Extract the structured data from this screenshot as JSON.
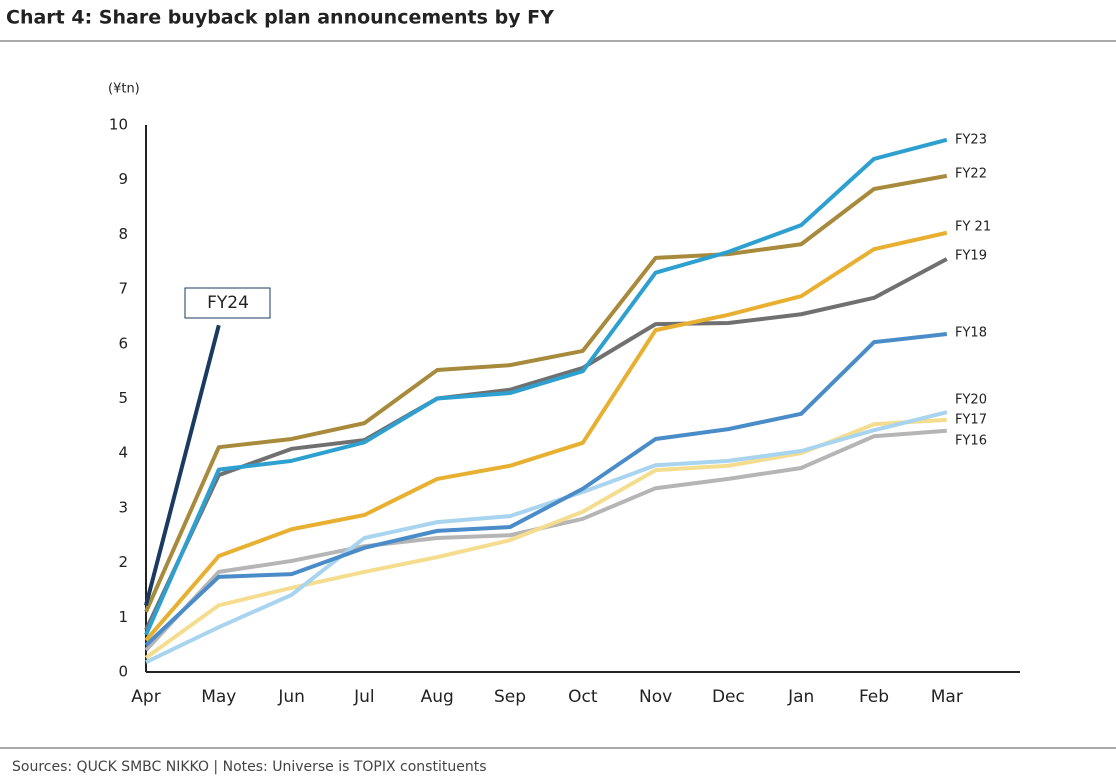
{
  "chart_data": {
    "type": "line",
    "title": "Chart 4: Share buyback plan announcements by FY",
    "unit_label": "(¥tn)",
    "source": "Sources: QUCK SMBC NIKKO | Notes: Universe is TOPIX constituents",
    "categories": [
      "Apr",
      "May",
      "Jun",
      "Jul",
      "Aug",
      "Sep",
      "Oct",
      "Nov",
      "Dec",
      "Jan",
      "Feb",
      "Mar"
    ],
    "ylim": [
      0,
      10
    ],
    "yticks": [
      0,
      1,
      2,
      3,
      4,
      5,
      6,
      7,
      8,
      9,
      10
    ],
    "grid": false,
    "series": [
      {
        "name": "FY16",
        "color": "#b5b5b5",
        "values": [
          0.4,
          1.83,
          2.03,
          2.3,
          2.45,
          2.5,
          2.8,
          3.36,
          3.53,
          3.73,
          4.31,
          4.41
        ]
      },
      {
        "name": "FY17",
        "color": "#f5dd90",
        "values": [
          0.26,
          1.22,
          1.54,
          1.83,
          2.1,
          2.41,
          2.93,
          3.69,
          3.77,
          4.0,
          4.53,
          4.61
        ]
      },
      {
        "name": "FY20",
        "color": "#a8d4f0",
        "values": [
          0.18,
          0.82,
          1.41,
          2.45,
          2.74,
          2.85,
          3.29,
          3.78,
          3.86,
          4.04,
          4.42,
          4.75
        ]
      },
      {
        "name": "FY18",
        "color": "#4a8cc8",
        "values": [
          0.49,
          1.74,
          1.79,
          2.27,
          2.58,
          2.65,
          3.35,
          4.26,
          4.44,
          4.72,
          6.03,
          6.18
        ]
      },
      {
        "name": "FY19",
        "color": "#707070",
        "values": [
          0.77,
          3.6,
          4.08,
          4.24,
          5.0,
          5.16,
          5.56,
          6.36,
          6.38,
          6.54,
          6.84,
          7.55
        ]
      },
      {
        "name": "FY 21",
        "color": "#e8b030",
        "values": [
          0.58,
          2.12,
          2.61,
          2.87,
          3.53,
          3.77,
          4.19,
          6.25,
          6.53,
          6.87,
          7.73,
          8.03
        ]
      },
      {
        "name": "FY22",
        "color": "#a88a3c",
        "values": [
          1.1,
          4.11,
          4.26,
          4.55,
          5.52,
          5.61,
          5.87,
          7.57,
          7.64,
          7.82,
          8.83,
          9.07
        ]
      },
      {
        "name": "FY23",
        "color": "#2ea0d0",
        "values": [
          0.68,
          3.7,
          3.86,
          4.2,
          5.0,
          5.1,
          5.5,
          7.3,
          7.68,
          8.17,
          9.38,
          9.73
        ]
      },
      {
        "name": "FY24",
        "color": "#1a3a60",
        "values": [
          1.22,
          6.34,
          null,
          null,
          null,
          null,
          null,
          null,
          null,
          null,
          null,
          null
        ]
      }
    ]
  }
}
